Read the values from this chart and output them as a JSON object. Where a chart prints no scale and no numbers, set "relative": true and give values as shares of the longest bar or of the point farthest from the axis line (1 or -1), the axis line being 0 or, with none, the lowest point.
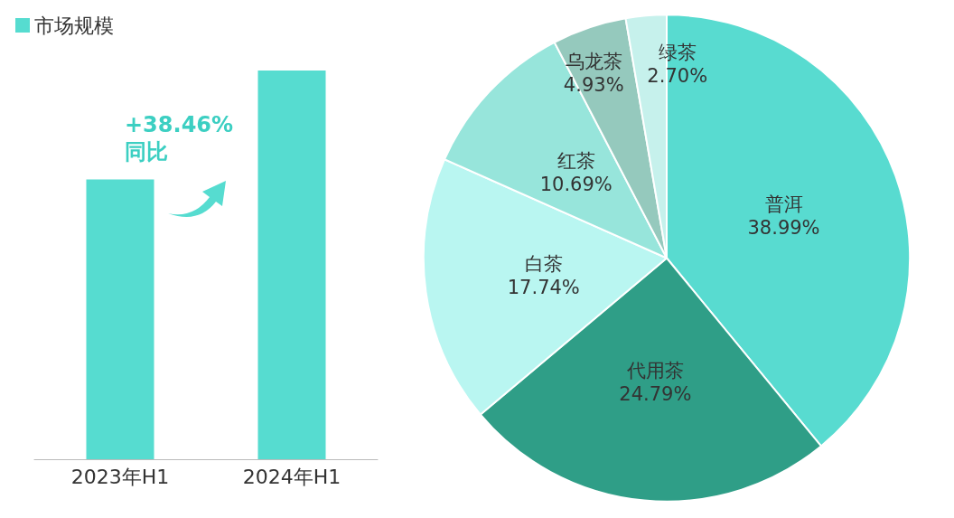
{
  "chart_data": [
    {
      "type": "bar",
      "relative": true,
      "categories": [
        "2023年H1",
        "2024年H1"
      ],
      "series": [
        {
          "name": "市场规模",
          "color": "#56dcd0",
          "values": [
            0.72,
            1
          ]
        }
      ],
      "legend": "top left",
      "annotations": [
        "+38.46%\n同比"
      ]
    },
    {
      "type": "pie",
      "categories": [
        "普洱",
        "代用茶",
        "白茶",
        "红茶",
        "乌龙茶",
        "绿茶"
      ],
      "values": [
        38.99,
        24.79,
        17.74,
        10.69,
        4.93,
        2.7
      ],
      "colors": [
        "#58dbd0",
        "#2f9e87",
        "#b9f6f1",
        "#97e5db",
        "#95c9bd",
        "#c6f1ec"
      ],
      "value_labels": [
        "38.99%",
        "24.79%",
        "17.74%",
        "10.69%",
        "4.93%",
        "2.70%"
      ]
    }
  ]
}
